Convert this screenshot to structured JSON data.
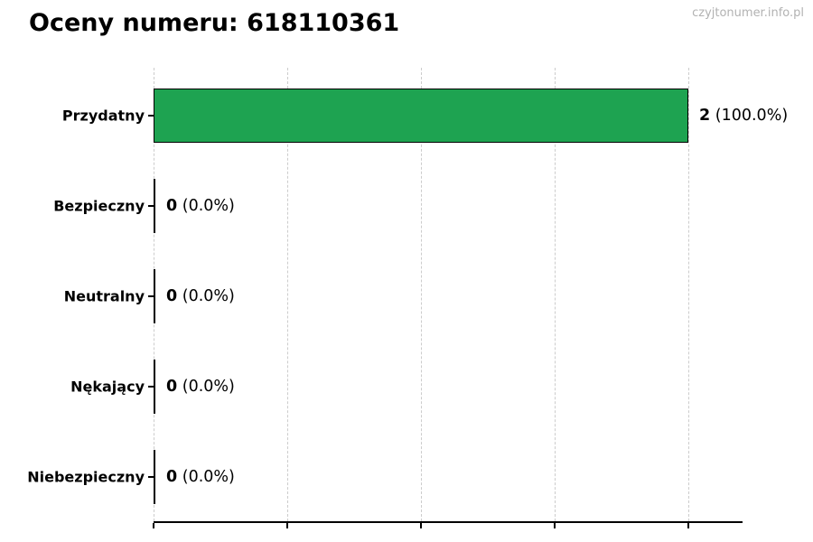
{
  "page": {
    "watermark": "czyjtonumer.info.pl"
  },
  "colors": {
    "bar_fill": "#1ea351",
    "bar_border": "#000000",
    "gridline": "#cccccc",
    "axis": "#000000",
    "title_text": "#000000",
    "watermark_text": "#b2b2b2"
  },
  "chart_data": {
    "type": "bar",
    "orientation": "horizontal",
    "title": "Oceny numeru: 618110361",
    "xlabel": "",
    "ylabel": "",
    "categories": [
      "Przydatny",
      "Bezpieczny",
      "Neutralny",
      "Nękający",
      "Niebezpieczny"
    ],
    "values": [
      2,
      0,
      0,
      0,
      0
    ],
    "percentages": [
      100.0,
      0.0,
      0.0,
      0.0,
      0.0
    ],
    "value_labels": [
      "2",
      "0",
      "0",
      "0",
      "0"
    ],
    "percent_labels": [
      "(100.0%)",
      "(0.0%)",
      "(0.0%)",
      "(0.0%)",
      "(0.0%)"
    ],
    "xlim": [
      0,
      2
    ],
    "gridline_values": [
      0,
      0.5,
      1,
      1.5,
      2
    ],
    "grid": true,
    "legend": false
  }
}
